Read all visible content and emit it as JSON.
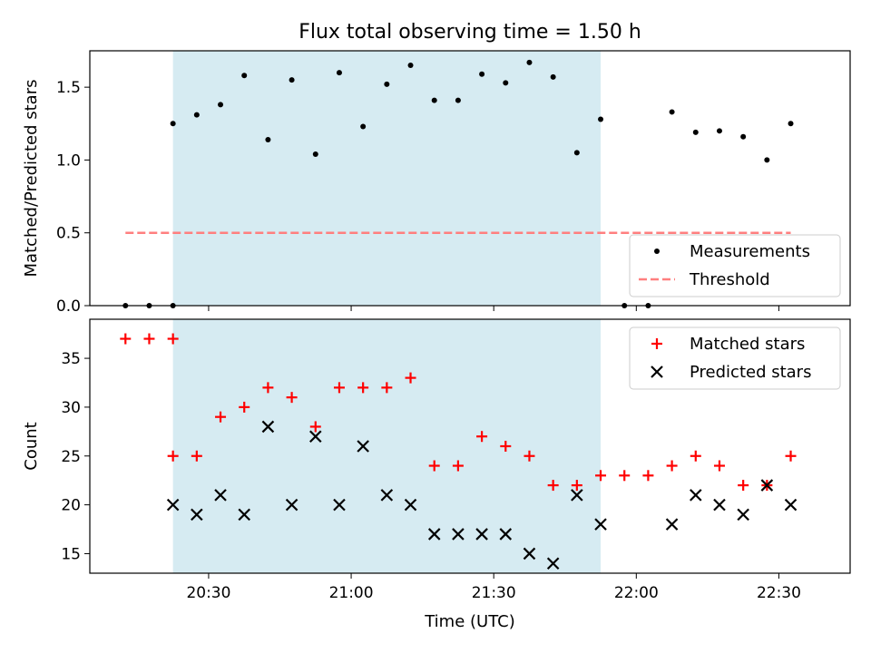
{
  "chart_data": {
    "type": "scatter",
    "title": "Flux total observing time = 1.50 h",
    "xlabel": "Time (UTC)",
    "x_tick_labels": [
      "20:30",
      "21:00",
      "21:30",
      "22:00",
      "22:30"
    ],
    "x_tick_values": [
      "20:30",
      "21:00",
      "21:30",
      "22:00",
      "22:30"
    ],
    "x_range": [
      "20:05",
      "22:45"
    ],
    "shaded_region": {
      "from": "20:22:30",
      "to": "21:52:30",
      "color": "#add8e6"
    },
    "panels": [
      {
        "ylabel": "Matched/Predicted stars",
        "ylim": [
          0,
          1.75
        ],
        "y_ticks": [
          "0.0",
          "0.5",
          "1.0",
          "1.5"
        ],
        "legend_position": "lower-right",
        "series": [
          {
            "name": "Measurements",
            "marker": "dot",
            "color": "#000000",
            "points": [
              [
                "20:12:30",
                0.0
              ],
              [
                "20:17:30",
                0.0
              ],
              [
                "20:22:30",
                0.0
              ],
              [
                "20:22:30",
                1.25
              ],
              [
                "20:27:30",
                1.31
              ],
              [
                "20:32:30",
                1.38
              ],
              [
                "20:37:30",
                1.58
              ],
              [
                "20:42:30",
                1.14
              ],
              [
                "20:47:30",
                1.55
              ],
              [
                "20:52:30",
                1.04
              ],
              [
                "20:57:30",
                1.6
              ],
              [
                "21:02:30",
                1.23
              ],
              [
                "21:07:30",
                1.52
              ],
              [
                "21:12:30",
                1.65
              ],
              [
                "21:17:30",
                1.41
              ],
              [
                "21:22:30",
                1.41
              ],
              [
                "21:27:30",
                1.59
              ],
              [
                "21:32:30",
                1.53
              ],
              [
                "21:37:30",
                1.67
              ],
              [
                "21:42:30",
                1.57
              ],
              [
                "21:47:30",
                1.05
              ],
              [
                "21:52:30",
                1.28
              ],
              [
                "21:57:30",
                0.0
              ],
              [
                "22:02:30",
                0.0
              ],
              [
                "22:07:30",
                1.33
              ],
              [
                "22:12:30",
                1.19
              ],
              [
                "22:17:30",
                1.2
              ],
              [
                "22:22:30",
                1.16
              ],
              [
                "22:27:30",
                1.0
              ],
              [
                "22:32:30",
                1.25
              ]
            ]
          },
          {
            "name": "Threshold",
            "marker": "dashed-line",
            "color": "#ff7f7f",
            "points": [
              [
                "20:12:30",
                0.5
              ],
              [
                "22:32:30",
                0.5
              ]
            ]
          }
        ]
      },
      {
        "ylabel": "Count",
        "ylim": [
          13,
          39
        ],
        "y_ticks": [
          "15",
          "20",
          "25",
          "30",
          "35"
        ],
        "legend_position": "upper-right",
        "series": [
          {
            "name": "Matched stars",
            "marker": "plus",
            "color": "#ff0000",
            "points": [
              [
                "20:12:30",
                37
              ],
              [
                "20:17:30",
                37
              ],
              [
                "20:22:30",
                37
              ],
              [
                "20:22:30",
                25
              ],
              [
                "20:27:30",
                25
              ],
              [
                "20:32:30",
                29
              ],
              [
                "20:37:30",
                30
              ],
              [
                "20:42:30",
                32
              ],
              [
                "20:47:30",
                31
              ],
              [
                "20:52:30",
                28
              ],
              [
                "20:57:30",
                32
              ],
              [
                "21:02:30",
                32
              ],
              [
                "21:07:30",
                32
              ],
              [
                "21:12:30",
                33
              ],
              [
                "21:17:30",
                24
              ],
              [
                "21:22:30",
                24
              ],
              [
                "21:27:30",
                27
              ],
              [
                "21:32:30",
                26
              ],
              [
                "21:37:30",
                25
              ],
              [
                "21:42:30",
                22
              ],
              [
                "21:47:30",
                22
              ],
              [
                "21:52:30",
                23
              ],
              [
                "21:57:30",
                23
              ],
              [
                "22:02:30",
                23
              ],
              [
                "22:07:30",
                24
              ],
              [
                "22:12:30",
                25
              ],
              [
                "22:17:30",
                24
              ],
              [
                "22:22:30",
                22
              ],
              [
                "22:27:30",
                22
              ],
              [
                "22:32:30",
                25
              ]
            ]
          },
          {
            "name": "Predicted stars",
            "marker": "x",
            "color": "#000000",
            "points": [
              [
                "20:22:30",
                20
              ],
              [
                "20:27:30",
                19
              ],
              [
                "20:32:30",
                21
              ],
              [
                "20:37:30",
                19
              ],
              [
                "20:42:30",
                28
              ],
              [
                "20:47:30",
                20
              ],
              [
                "20:52:30",
                27
              ],
              [
                "20:57:30",
                20
              ],
              [
                "21:02:30",
                26
              ],
              [
                "21:07:30",
                21
              ],
              [
                "21:12:30",
                20
              ],
              [
                "21:17:30",
                17
              ],
              [
                "21:22:30",
                17
              ],
              [
                "21:27:30",
                17
              ],
              [
                "21:32:30",
                17
              ],
              [
                "21:37:30",
                15
              ],
              [
                "21:42:30",
                14
              ],
              [
                "21:47:30",
                21
              ],
              [
                "21:52:30",
                18
              ],
              [
                "22:07:30",
                18
              ],
              [
                "22:12:30",
                21
              ],
              [
                "22:17:30",
                20
              ],
              [
                "22:22:30",
                19
              ],
              [
                "22:27:30",
                22
              ],
              [
                "22:32:30",
                20
              ]
            ]
          }
        ]
      }
    ]
  }
}
